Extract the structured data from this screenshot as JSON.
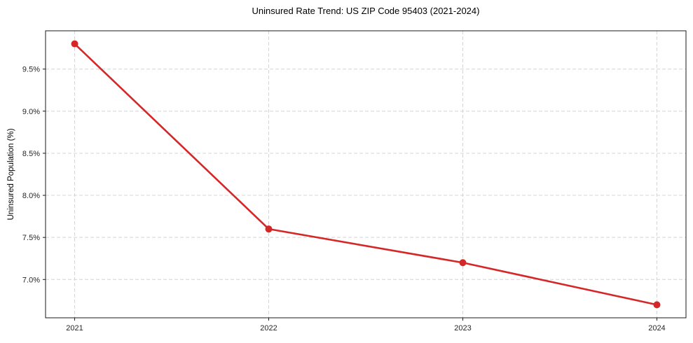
{
  "chart_data": {
    "type": "line",
    "title": "Uninsured Rate Trend: US ZIP Code 95403 (2021-2024)",
    "xlabel": "",
    "ylabel": "Uninsured Population (%)",
    "categories": [
      "2021",
      "2022",
      "2023",
      "2024"
    ],
    "values": [
      9.8,
      7.6,
      7.2,
      6.7
    ],
    "y_tick_values": [
      7.0,
      7.5,
      8.0,
      8.5,
      9.0,
      9.5
    ],
    "y_tick_labels": [
      "7.0%",
      "7.5%",
      "8.0%",
      "8.5%",
      "9.0%",
      "9.5%"
    ],
    "ylim": [
      6.545,
      9.955
    ],
    "x_margin": 0.05,
    "grid": true,
    "grid_style": "dashed",
    "legend_position": "none",
    "line_color": "#d62728",
    "marker": "circle",
    "background_color": "#ffffff",
    "grid_color": "#d4d4d4"
  }
}
